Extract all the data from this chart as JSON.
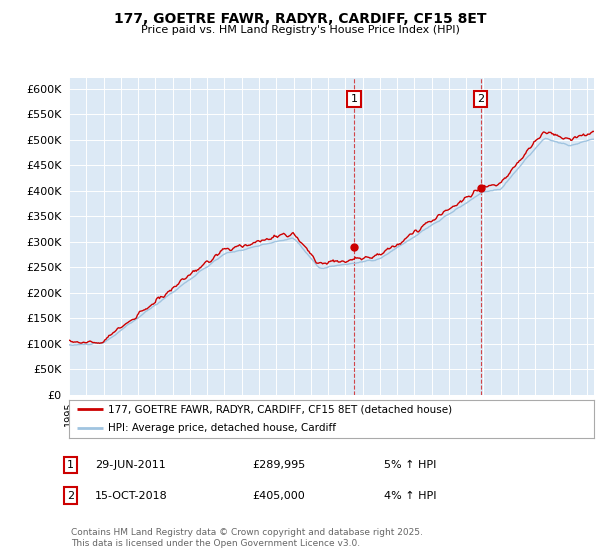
{
  "title": "177, GOETRE FAWR, RADYR, CARDIFF, CF15 8ET",
  "subtitle": "Price paid vs. HM Land Registry's House Price Index (HPI)",
  "ylabel_values": [
    0,
    50000,
    100000,
    150000,
    200000,
    250000,
    300000,
    350000,
    400000,
    450000,
    500000,
    550000,
    600000
  ],
  "ylim": [
    0,
    620000
  ],
  "xlim_start": 1995,
  "xlim_end": 2025.4,
  "plot_bg_color": "#dce9f5",
  "line1_color": "#cc0000",
  "line2_color": "#a0c4e0",
  "ann1_x": 2011.5,
  "ann2_x": 2018.83,
  "ann1_y": 290000,
  "ann2_y": 405000,
  "legend_line1": "177, GOETRE FAWR, RADYR, CARDIFF, CF15 8ET (detached house)",
  "legend_line2": "HPI: Average price, detached house, Cardiff",
  "note1_label": "1",
  "note1_date": "29-JUN-2011",
  "note1_price": "£289,995",
  "note1_change": "5% ↑ HPI",
  "note2_label": "2",
  "note2_date": "15-OCT-2018",
  "note2_price": "£405,000",
  "note2_change": "4% ↑ HPI",
  "footer": "Contains HM Land Registry data © Crown copyright and database right 2025.\nThis data is licensed under the Open Government Licence v3.0."
}
